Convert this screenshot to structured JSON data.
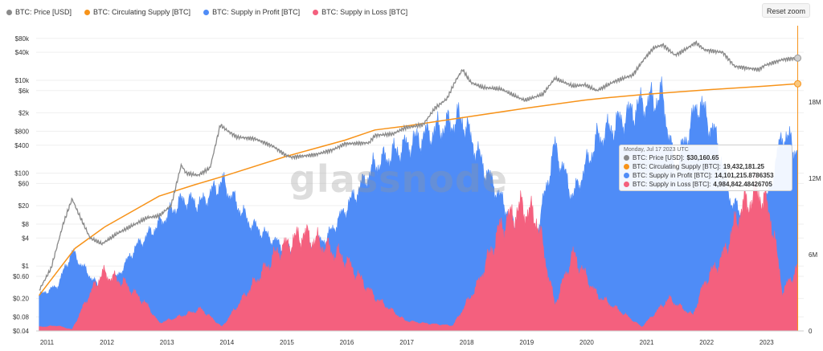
{
  "legend": [
    {
      "label": "BTC: Price [USD]",
      "color": "#8a8a8a"
    },
    {
      "label": "BTC: Circulating Supply [BTC]",
      "color": "#f7931a"
    },
    {
      "label": "BTC: Supply in Profit [BTC]",
      "color": "#4f8cf7"
    },
    {
      "label": "BTC: Supply in Loss [BTC]",
      "color": "#f4607e"
    }
  ],
  "reset_zoom": "Reset zoom",
  "watermark": "glassnode",
  "tooltip": {
    "date": "Monday, Jul 17 2023 UTC",
    "rows": [
      {
        "label": "BTC: Price [USD]:",
        "value": "$30,160.65",
        "color": "#8a8a8a"
      },
      {
        "label": "BTC: Circulating Supply [BTC]:",
        "value": "19,432,181.25",
        "color": "#f7931a"
      },
      {
        "label": "BTC: Supply in Profit [BTC]:",
        "value": "14,101,215.8786353",
        "color": "#4f8cf7"
      },
      {
        "label": "BTC: Supply in Loss [BTC]:",
        "value": "4,984,842.48426705",
        "color": "#f4607e"
      }
    ]
  },
  "chart_data": {
    "type": "area",
    "x_ticks": [
      "2011",
      "2012",
      "2013",
      "2014",
      "2015",
      "2016",
      "2017",
      "2018",
      "2019",
      "2020",
      "2021",
      "2022",
      "2023"
    ],
    "x_tick_values": [
      2011,
      2012,
      2013,
      2014,
      2015,
      2016,
      2017,
      2018,
      2019,
      2020,
      2021,
      2022,
      2023
    ],
    "x_range": [
      2010.85,
      2023.65
    ],
    "y_left": {
      "scale": "log",
      "ticks": [
        {
          "label": "$80k",
          "value": 80000
        },
        {
          "label": "$40k",
          "value": 40000
        },
        {
          "label": "$10k",
          "value": 10000
        },
        {
          "label": "$6k",
          "value": 6000
        },
        {
          "label": "$2k",
          "value": 2000
        },
        {
          "label": "$800",
          "value": 800
        },
        {
          "label": "$400",
          "value": 400
        },
        {
          "label": "$100",
          "value": 100
        },
        {
          "label": "$60",
          "value": 60
        },
        {
          "label": "$20",
          "value": 20
        },
        {
          "label": "$8",
          "value": 8
        },
        {
          "label": "$4",
          "value": 4
        },
        {
          "label": "$1",
          "value": 1
        },
        {
          "label": "$0.60",
          "value": 0.6
        },
        {
          "label": "$0.20",
          "value": 0.2
        },
        {
          "label": "$0.08",
          "value": 0.08
        },
        {
          "label": "$0.04",
          "value": 0.04
        }
      ],
      "range": [
        0.04,
        150000
      ]
    },
    "y_right": {
      "scale": "linear",
      "ticks": [
        {
          "label": "18M",
          "value": 18000000
        },
        {
          "label": "12M",
          "value": 12000000
        },
        {
          "label": "6M",
          "value": 6000000
        },
        {
          "label": "0",
          "value": 0
        }
      ],
      "range": [
        0,
        24000000
      ]
    },
    "series": [
      {
        "name": "BTC: Price [USD]",
        "axis": "left",
        "color": "#8a8a8a",
        "x": [
          2010.9,
          2011.1,
          2011.3,
          2011.45,
          2011.55,
          2011.75,
          2011.95,
          2012.2,
          2012.5,
          2012.7,
          2012.9,
          2013.1,
          2013.27,
          2013.35,
          2013.55,
          2013.75,
          2013.92,
          2014.05,
          2014.2,
          2014.5,
          2014.8,
          2015.0,
          2015.1,
          2015.5,
          2015.8,
          2016.0,
          2016.4,
          2016.5,
          2016.8,
          2017.0,
          2017.3,
          2017.5,
          2017.7,
          2017.85,
          2017.96,
          2018.1,
          2018.3,
          2018.6,
          2018.9,
          2019.0,
          2019.3,
          2019.5,
          2019.8,
          2020.0,
          2020.2,
          2020.5,
          2020.8,
          2021.0,
          2021.15,
          2021.3,
          2021.5,
          2021.6,
          2021.85,
          2022.0,
          2022.3,
          2022.5,
          2022.9,
          2023.0,
          2023.3,
          2023.55
        ],
        "y": [
          0.3,
          0.9,
          8,
          28,
          14,
          4,
          3,
          5,
          8,
          11,
          12,
          20,
          150,
          100,
          90,
          130,
          1100,
          800,
          600,
          550,
          380,
          250,
          220,
          250,
          320,
          430,
          450,
          650,
          700,
          950,
          1100,
          2500,
          4000,
          10000,
          17000,
          9000,
          7000,
          6500,
          4200,
          3700,
          5000,
          11000,
          7500,
          8000,
          6000,
          9500,
          13000,
          30000,
          50000,
          58000,
          35000,
          40000,
          65000,
          45000,
          40000,
          20000,
          17000,
          21000,
          28000,
          30160
        ]
      },
      {
        "name": "BTC: Circulating Supply [BTC]",
        "axis": "right",
        "color": "#f7931a",
        "x": [
          2010.9,
          2011.5,
          2012.0,
          2012.9,
          2013.5,
          2014.0,
          2015.0,
          2016.0,
          2016.5,
          2017.0,
          2018.0,
          2019.0,
          2020.0,
          2020.4,
          2021.0,
          2022.0,
          2023.0,
          2023.55
        ],
        "y": [
          2800000,
          6500000,
          8200000,
          10600000,
          11500000,
          12200000,
          13700000,
          15000000,
          15800000,
          16100000,
          16800000,
          17500000,
          18150000,
          18350000,
          18600000,
          18950000,
          19250000,
          19432181
        ]
      },
      {
        "name": "BTC: Supply in Profit [BTC]",
        "axis": "right",
        "color": "#4f8cf7",
        "x": [
          2010.9,
          2011.2,
          2011.45,
          2011.6,
          2011.9,
          2012.2,
          2012.5,
          2012.9,
          2013.3,
          2013.6,
          2013.95,
          2014.4,
          2014.9,
          2015.2,
          2015.7,
          2016.0,
          2016.5,
          2017.0,
          2017.5,
          2017.95,
          2018.3,
          2018.7,
          2018.95,
          2019.2,
          2019.5,
          2019.8,
          2020.2,
          2020.6,
          2020.95,
          2021.3,
          2021.5,
          2021.9,
          2022.2,
          2022.45,
          2022.8,
          2023.0,
          2023.3,
          2023.55
        ],
        "y": [
          2800000,
          3500000,
          6200000,
          5200000,
          3400000,
          4200000,
          6500000,
          8400000,
          10300000,
          10000000,
          11700000,
          8500000,
          6800000,
          6000000,
          7300000,
          9500000,
          13000000,
          14500000,
          15700000,
          16700000,
          13000000,
          9500000,
          6900000,
          7700000,
          14500000,
          10500000,
          15000000,
          16500000,
          17800000,
          18400000,
          12500000,
          18000000,
          15000000,
          10000000,
          8500000,
          9500000,
          15500000,
          14100000
        ]
      },
      {
        "name": "BTC: Supply in Loss [BTC]",
        "axis": "right",
        "color": "#f4607e",
        "x": [
          2010.9,
          2011.2,
          2011.45,
          2011.7,
          2011.95,
          2012.3,
          2012.7,
          2012.9,
          2013.3,
          2013.6,
          2013.95,
          2014.4,
          2014.9,
          2015.3,
          2015.7,
          2016.0,
          2016.5,
          2017.0,
          2017.3,
          2017.8,
          2018.2,
          2018.6,
          2018.95,
          2019.2,
          2019.5,
          2019.8,
          2020.2,
          2020.6,
          2020.95,
          2021.4,
          2021.8,
          2022.0,
          2022.3,
          2022.6,
          2022.9,
          2023.1,
          2023.3,
          2023.55
        ],
        "y": [
          300000,
          400000,
          100000,
          2500000,
          4500000,
          3800000,
          2000000,
          600000,
          1200000,
          1700000,
          300000,
          3200000,
          6300000,
          7600000,
          6500000,
          5600000,
          2600000,
          800000,
          600000,
          400000,
          3500000,
          8200000,
          9700000,
          8800000,
          2000000,
          6000000,
          2800000,
          1500000,
          300000,
          2500000,
          1200000,
          3800000,
          5800000,
          9500000,
          11000000,
          9000000,
          3000000,
          4984842
        ]
      }
    ]
  }
}
